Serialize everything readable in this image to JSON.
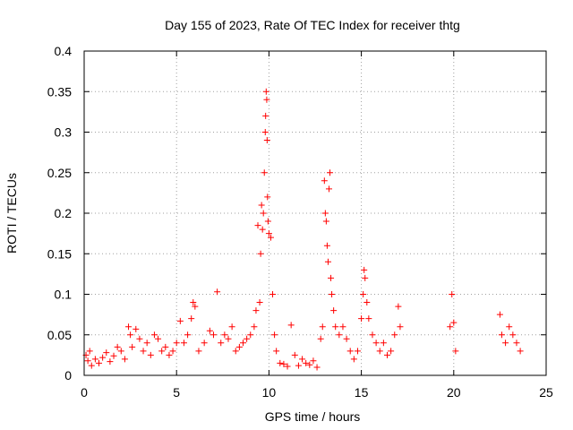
{
  "chart_data": {
    "type": "scatter",
    "title": "Day 155 of 2023, Rate Of TEC Index for receiver thtg",
    "xlabel": "GPS time / hours",
    "ylabel": "ROTI / TECUs",
    "xlim": [
      0,
      25
    ],
    "ylim": [
      0,
      0.4
    ],
    "x_ticks": [
      "0",
      "5",
      "10",
      "15",
      "20",
      "25"
    ],
    "y_ticks": [
      "0",
      "0.05",
      "0.1",
      "0.15",
      "0.2",
      "0.25",
      "0.3",
      "0.35",
      "0.4"
    ],
    "grid": true,
    "marker": "plus",
    "color": "#ff0000",
    "series": [
      {
        "points": [
          [
            0.1,
            0.025
          ],
          [
            0.2,
            0.018
          ],
          [
            0.3,
            0.03
          ],
          [
            0.4,
            0.012
          ],
          [
            0.6,
            0.02
          ],
          [
            0.8,
            0.015
          ],
          [
            1.0,
            0.022
          ],
          [
            1.2,
            0.028
          ],
          [
            1.4,
            0.017
          ],
          [
            1.6,
            0.024
          ],
          [
            1.8,
            0.035
          ],
          [
            2.0,
            0.03
          ],
          [
            2.2,
            0.02
          ],
          [
            2.4,
            0.06
          ],
          [
            2.5,
            0.05
          ],
          [
            2.6,
            0.035
          ],
          [
            2.8,
            0.057
          ],
          [
            3.0,
            0.045
          ],
          [
            3.2,
            0.03
          ],
          [
            3.4,
            0.04
          ],
          [
            3.6,
            0.025
          ],
          [
            3.8,
            0.05
          ],
          [
            4.0,
            0.045
          ],
          [
            4.2,
            0.03
          ],
          [
            4.4,
            0.035
          ],
          [
            4.6,
            0.025
          ],
          [
            4.8,
            0.03
          ],
          [
            5.0,
            0.04
          ],
          [
            5.2,
            0.067
          ],
          [
            5.4,
            0.04
          ],
          [
            5.6,
            0.05
          ],
          [
            5.8,
            0.07
          ],
          [
            5.9,
            0.09
          ],
          [
            6.0,
            0.085
          ],
          [
            6.2,
            0.03
          ],
          [
            6.5,
            0.04
          ],
          [
            6.8,
            0.055
          ],
          [
            7.0,
            0.05
          ],
          [
            7.2,
            0.103
          ],
          [
            7.4,
            0.04
          ],
          [
            7.6,
            0.05
          ],
          [
            7.8,
            0.045
          ],
          [
            8.0,
            0.06
          ],
          [
            8.2,
            0.03
          ],
          [
            8.4,
            0.035
          ],
          [
            8.6,
            0.04
          ],
          [
            8.8,
            0.045
          ],
          [
            9.0,
            0.05
          ],
          [
            9.2,
            0.06
          ],
          [
            9.3,
            0.08
          ],
          [
            9.4,
            0.185
          ],
          [
            9.5,
            0.09
          ],
          [
            9.55,
            0.15
          ],
          [
            9.6,
            0.21
          ],
          [
            9.65,
            0.18
          ],
          [
            9.7,
            0.2
          ],
          [
            9.75,
            0.25
          ],
          [
            9.8,
            0.3
          ],
          [
            9.82,
            0.32
          ],
          [
            9.85,
            0.35
          ],
          [
            9.88,
            0.34
          ],
          [
            9.9,
            0.29
          ],
          [
            9.92,
            0.22
          ],
          [
            9.95,
            0.19
          ],
          [
            10.0,
            0.175
          ],
          [
            10.1,
            0.17
          ],
          [
            10.2,
            0.1
          ],
          [
            10.3,
            0.05
          ],
          [
            10.4,
            0.03
          ],
          [
            10.6,
            0.015
          ],
          [
            10.8,
            0.014
          ],
          [
            11.0,
            0.011
          ],
          [
            11.2,
            0.062
          ],
          [
            11.4,
            0.025
          ],
          [
            11.6,
            0.012
          ],
          [
            11.8,
            0.02
          ],
          [
            12.0,
            0.015
          ],
          [
            12.2,
            0.013
          ],
          [
            12.4,
            0.018
          ],
          [
            12.6,
            0.01
          ],
          [
            12.8,
            0.045
          ],
          [
            12.9,
            0.06
          ],
          [
            13.0,
            0.24
          ],
          [
            13.05,
            0.2
          ],
          [
            13.1,
            0.19
          ],
          [
            13.15,
            0.16
          ],
          [
            13.2,
            0.14
          ],
          [
            13.25,
            0.23
          ],
          [
            13.3,
            0.25
          ],
          [
            13.35,
            0.12
          ],
          [
            13.4,
            0.1
          ],
          [
            13.5,
            0.08
          ],
          [
            13.6,
            0.06
          ],
          [
            13.8,
            0.05
          ],
          [
            14.0,
            0.06
          ],
          [
            14.2,
            0.045
          ],
          [
            14.4,
            0.03
          ],
          [
            14.6,
            0.02
          ],
          [
            14.8,
            0.03
          ],
          [
            15.0,
            0.07
          ],
          [
            15.1,
            0.1
          ],
          [
            15.15,
            0.13
          ],
          [
            15.2,
            0.12
          ],
          [
            15.3,
            0.09
          ],
          [
            15.4,
            0.07
          ],
          [
            15.6,
            0.05
          ],
          [
            15.8,
            0.04
          ],
          [
            16.0,
            0.03
          ],
          [
            16.2,
            0.04
          ],
          [
            16.4,
            0.025
          ],
          [
            16.6,
            0.03
          ],
          [
            16.8,
            0.05
          ],
          [
            17.0,
            0.085
          ],
          [
            17.1,
            0.06
          ],
          [
            19.8,
            0.06
          ],
          [
            19.9,
            0.1
          ],
          [
            20.0,
            0.065
          ],
          [
            20.1,
            0.03
          ],
          [
            22.5,
            0.075
          ],
          [
            22.6,
            0.05
          ],
          [
            22.8,
            0.04
          ],
          [
            23.0,
            0.06
          ],
          [
            23.2,
            0.05
          ],
          [
            23.4,
            0.04
          ],
          [
            23.6,
            0.03
          ]
        ]
      }
    ]
  }
}
